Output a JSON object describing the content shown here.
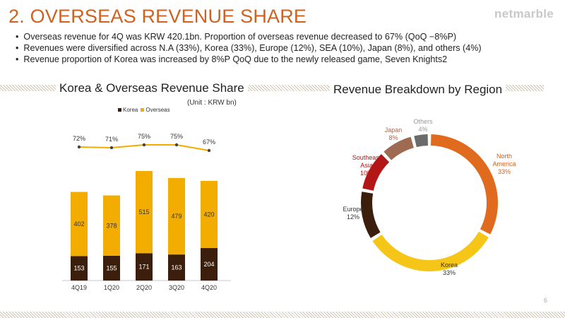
{
  "header": {
    "title": "2. OVERSEAS REVENUE SHARE",
    "logo": "netmarble"
  },
  "bullets": [
    "Overseas revenue for 4Q was KRW 420.1bn. Proportion of overseas revenue decreased to 67% (QoQ −8%P)",
    "Revenues were diversified across N.A (33%), Korea (33%), Europe (12%), SEA (10%), Japan (8%), and others (4%)",
    "Revenue proportion of Korea was increased by 8%P QoQ due to the newly released game, Seven Knights2"
  ],
  "left_section": {
    "title": "Korea & Overseas Revenue Share",
    "unit": "(Unit : KRW bn)"
  },
  "right_section": {
    "title": "Revenue Breakdown by Region"
  },
  "page_number": "6",
  "colors": {
    "accent": "#d0611f",
    "korea": "#3b1e0b",
    "overseas": "#f2ad00",
    "line": "#f2ad00"
  },
  "chart_data": [
    {
      "type": "bar",
      "stacked": true,
      "categories": [
        "4Q19",
        "1Q20",
        "2Q20",
        "3Q20",
        "4Q20"
      ],
      "series": [
        {
          "name": "Korea",
          "values": [
            153,
            155,
            171,
            163,
            204
          ],
          "color": "#3b1e0b"
        },
        {
          "name": "Overseas",
          "values": [
            402,
            378,
            515,
            479,
            420
          ],
          "color": "#f2ad00"
        }
      ],
      "line": {
        "values": [
          72,
          71,
          75,
          75,
          67
        ],
        "labels": [
          "72%",
          "71%",
          "75%",
          "75%",
          "67%"
        ],
        "color": "#f2ad00"
      },
      "ylim": [
        0,
        700
      ],
      "legend": "top-center"
    },
    {
      "type": "pie",
      "donut": true,
      "slices": [
        {
          "label": "North America",
          "label_lines": [
            "North",
            "America",
            "33%"
          ],
          "value": 33,
          "color": "#e06a1e",
          "label_color": "#d0611f"
        },
        {
          "label": "Korea",
          "label_lines": [
            "Korea",
            "33%"
          ],
          "value": 33,
          "color": "#f5c518",
          "label_color": "#333333"
        },
        {
          "label": "Europe",
          "label_lines": [
            "Europe",
            "12%"
          ],
          "value": 12,
          "color": "#3b1e0b",
          "label_color": "#333333"
        },
        {
          "label": "Southeast Asia",
          "label_lines": [
            "Southeast",
            "Asia",
            "10%"
          ],
          "value": 10,
          "color": "#b31616",
          "label_color": "#b31616"
        },
        {
          "label": "Japan",
          "label_lines": [
            "Japan",
            "8%"
          ],
          "value": 8,
          "color": "#9e6a52",
          "label_color": "#9e6a52"
        },
        {
          "label": "Others",
          "label_lines": [
            "Others",
            "4%"
          ],
          "value": 4,
          "color": "#6b6b6b",
          "label_color": "#999999"
        }
      ]
    }
  ]
}
